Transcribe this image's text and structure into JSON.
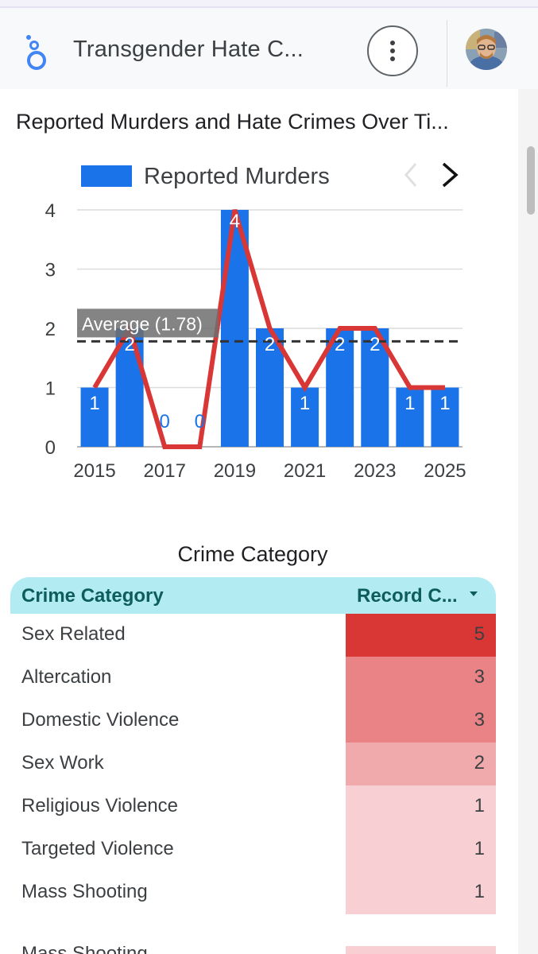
{
  "app": {
    "title": "Transgender Hate C...",
    "logo_icon": "looker-studio-icon",
    "menu_icon": "more-vert-icon",
    "avatar_icon": "user-avatar"
  },
  "chart_card": {
    "title": "Reported Murders and Hate Crimes Over Ti..."
  },
  "chart_data": {
    "type": "bar",
    "legend": {
      "label": "Reported Murders",
      "position": "top"
    },
    "categories": [
      "2015",
      "2016",
      "2017",
      "2018",
      "2019",
      "2020",
      "2021",
      "2022",
      "2023",
      "2024",
      "2025"
    ],
    "x_tick_labels": [
      "2015",
      "2017",
      "2019",
      "2021",
      "2023",
      "2025"
    ],
    "series": [
      {
        "name": "Reported Murders",
        "type": "bar",
        "color": "#1a73e8",
        "values": [
          1,
          2,
          0,
          0,
          4,
          2,
          1,
          2,
          2,
          1,
          1
        ],
        "data_labels": [
          "1",
          "2",
          "0",
          "0",
          "4",
          "2",
          "1",
          "2",
          "2",
          "1",
          "1"
        ]
      },
      {
        "type": "line",
        "color": "#d93636",
        "values": [
          1,
          2,
          0,
          0,
          4,
          2,
          1,
          2,
          2,
          1,
          1
        ]
      }
    ],
    "reference_line": {
      "label": "Average (1.78)",
      "value": 1.78,
      "style": "dashed",
      "color": "#333333"
    },
    "y_ticks": [
      "0",
      "1",
      "2",
      "3",
      "4"
    ],
    "ylim": [
      0,
      4
    ],
    "grid": true,
    "pager": {
      "prev_icon": "chevron-left-icon",
      "next_icon": "chevron-right-icon",
      "prev_enabled": false
    }
  },
  "table": {
    "title": "Crime Category",
    "headers": {
      "category": "Crime Category",
      "records": "Record C...",
      "sort_icon": "sort-desc-icon"
    },
    "rows": [
      {
        "category": "Sex Related",
        "count": "5",
        "heat": 1.0
      },
      {
        "category": "Altercation",
        "count": "3",
        "heat": 0.6
      },
      {
        "category": "Domestic Violence",
        "count": "3",
        "heat": 0.6
      },
      {
        "category": "Sex Work",
        "count": "2",
        "heat": 0.4
      },
      {
        "category": "Religious Violence",
        "count": "1",
        "heat": 0.2
      },
      {
        "category": "Targeted Violence",
        "count": "1",
        "heat": 0.2
      },
      {
        "category": "Mass Shooting",
        "count": "1",
        "heat": 0.2
      }
    ],
    "partial_row": {
      "category": "Mass Shooting"
    }
  },
  "colors": {
    "bar": "#1a73e8",
    "line": "#d93636",
    "header_bg": "#b2ebf2",
    "header_text": "#0d5d5d",
    "heat_high": "#d93636",
    "heat_low": "#f8d0d3"
  }
}
